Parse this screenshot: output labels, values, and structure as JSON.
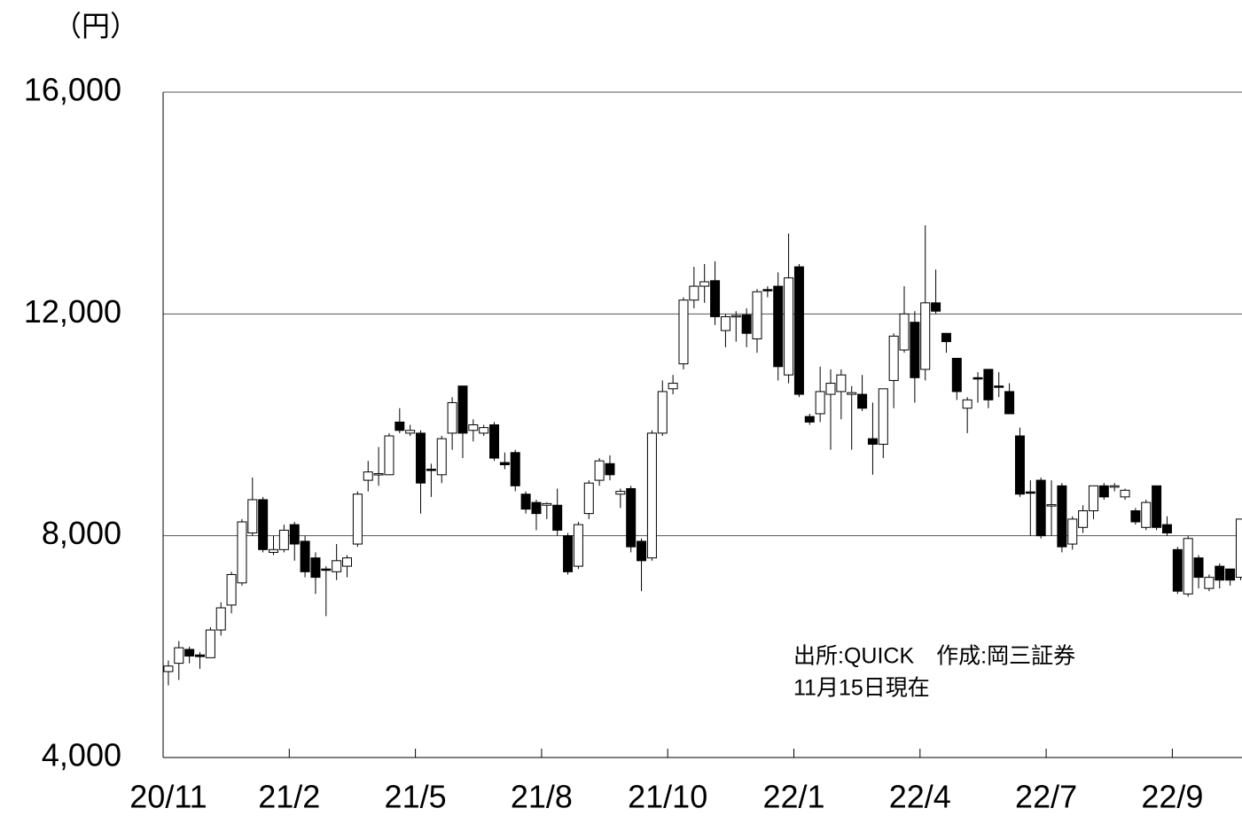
{
  "chart_data": {
    "type": "candlestick",
    "y_label": "（円）",
    "annotations": [
      "出所:QUICK　作成:岡三証券",
      "11月15日現在"
    ],
    "categories": [
      "20/11",
      null,
      null,
      null,
      null,
      null,
      null,
      null,
      null,
      null,
      null,
      null,
      "21/2",
      null,
      null,
      null,
      null,
      null,
      null,
      null,
      null,
      null,
      null,
      null,
      "21/5",
      null,
      null,
      null,
      null,
      null,
      null,
      null,
      null,
      null,
      null,
      null,
      "21/8",
      null,
      null,
      null,
      null,
      null,
      null,
      null,
      null,
      null,
      null,
      null,
      "21/10",
      null,
      null,
      null,
      null,
      null,
      null,
      null,
      null,
      null,
      null,
      null,
      "22/1",
      null,
      null,
      null,
      null,
      null,
      null,
      null,
      null,
      null,
      null,
      null,
      "22/4",
      null,
      null,
      null,
      null,
      null,
      null,
      null,
      null,
      null,
      null,
      null,
      "22/7",
      null,
      null,
      null,
      null,
      null,
      null,
      null,
      null,
      null,
      null,
      null,
      "22/9",
      null,
      null,
      null,
      null,
      null,
      null
    ],
    "open": [
      5550,
      5700,
      5950,
      5850,
      5800,
      6300,
      6750,
      7150,
      8050,
      8650,
      7700,
      7750,
      8200,
      7900,
      7600,
      7400,
      7350,
      7450,
      7850,
      9000,
      9100,
      9100,
      10050,
      9850,
      9850,
      9200,
      9100,
      9850,
      10700,
      9900,
      9850,
      10000,
      9320,
      9500,
      8750,
      8600,
      8550,
      8550,
      8000,
      7450,
      8400,
      9000,
      9300,
      8750,
      8850,
      7900,
      7600,
      9850,
      10650,
      11100,
      12250,
      12500,
      12600,
      11700,
      11950,
      11980,
      11550,
      12440,
      12500,
      10900,
      12850,
      10150,
      10200,
      10550,
      10600,
      10550,
      10550,
      9750,
      9650,
      10800,
      11350,
      11850,
      11000,
      12200,
      11650,
      11200,
      10300,
      10850,
      11000,
      10700,
      10600,
      9800,
      8790,
      9000,
      8550,
      8900,
      7850,
      8150,
      8450,
      8900,
      8880,
      8700,
      8450,
      8150,
      8900,
      8200,
      7750,
      6950,
      7600,
      7050,
      7450,
      7400,
      7250
    ],
    "high": [
      5750,
      6100,
      6000,
      5900,
      6350,
      6800,
      7350,
      8300,
      9050,
      8700,
      8000,
      8200,
      8250,
      8000,
      7700,
      7450,
      7850,
      7650,
      8800,
      9350,
      9600,
      9850,
      10300,
      10000,
      9900,
      9300,
      9800,
      10500,
      10700,
      10100,
      10000,
      10050,
      9500,
      9550,
      8800,
      8650,
      8600,
      8850,
      8050,
      8250,
      9000,
      9400,
      9450,
      8850,
      8900,
      7950,
      9900,
      10800,
      10900,
      12300,
      12850,
      12900,
      12950,
      12000,
      12050,
      12100,
      12450,
      12500,
      12750,
      13450,
      12900,
      10200,
      11050,
      11000,
      11000,
      10700,
      10900,
      10400,
      10650,
      11650,
      12500,
      12050,
      13600,
      12800,
      11650,
      11200,
      10500,
      10950,
      11000,
      10950,
      10750,
      9950,
      9000,
      9050,
      9000,
      8950,
      8350,
      8550,
      8900,
      8950,
      8950,
      8850,
      8500,
      8650,
      8900,
      8350,
      7800,
      8000,
      7650,
      7300,
      7500,
      7400,
      8300
    ],
    "low": [
      5300,
      5400,
      5700,
      5600,
      5800,
      6200,
      6600,
      7100,
      8000,
      7700,
      7650,
      7700,
      7550,
      7250,
      6950,
      6550,
      7200,
      7250,
      7800,
      8800,
      8900,
      9100,
      9850,
      9800,
      8400,
      8700,
      8950,
      9550,
      9400,
      9700,
      9800,
      9350,
      9200,
      8800,
      8400,
      8100,
      8300,
      8000,
      7300,
      7400,
      8300,
      8900,
      9000,
      8500,
      7700,
      7000,
      7550,
      9800,
      10550,
      11000,
      12100,
      12200,
      11800,
      11400,
      11500,
      11400,
      11300,
      12300,
      10800,
      10750,
      10500,
      10000,
      10050,
      9550,
      10100,
      9550,
      10250,
      9100,
      9400,
      10300,
      11300,
      10400,
      10800,
      12000,
      11300,
      10450,
      9850,
      10400,
      10300,
      10500,
      10200,
      8700,
      8000,
      7950,
      8000,
      7700,
      7750,
      8050,
      8300,
      8650,
      8800,
      8650,
      8200,
      8100,
      8100,
      8000,
      6950,
      6900,
      7050,
      7000,
      7050,
      7100,
      7200
    ],
    "close": [
      5650,
      5980,
      5830,
      5820,
      6300,
      6700,
      7300,
      8250,
      8650,
      7750,
      7750,
      8100,
      7850,
      7350,
      7250,
      7380,
      7550,
      7600,
      8750,
      9150,
      9120,
      9800,
      9900,
      9900,
      8950,
      9180,
      9750,
      10400,
      9850,
      10000,
      9950,
      9400,
      9280,
      8900,
      8480,
      8400,
      8580,
      8100,
      7350,
      8200,
      8950,
      9350,
      9100,
      8800,
      7800,
      7550,
      9850,
      10600,
      10750,
      12250,
      12500,
      12580,
      11950,
      11950,
      11970,
      11650,
      12400,
      12420,
      11050,
      12650,
      10550,
      10050,
      10600,
      10750,
      10900,
      10580,
      10300,
      9650,
      10650,
      11600,
      12000,
      10850,
      12200,
      12050,
      11500,
      10600,
      10450,
      10830,
      10450,
      10680,
      10200,
      8750,
      8770,
      8000,
      8560,
      7800,
      8300,
      8450,
      8900,
      8700,
      8900,
      8820,
      8250,
      8600,
      8150,
      8050,
      7000,
      7950,
      7250,
      7250,
      7200,
      7200,
      8300
    ],
    "up_color": "#ffffff",
    "down_color": "#000000",
    "ylim": [
      4000,
      16000
    ],
    "yticks": [
      {
        "value": 4000,
        "label": "4,000"
      },
      {
        "value": 8000,
        "label": "8,000"
      },
      {
        "value": 12000,
        "label": "12,000"
      },
      {
        "value": 16000,
        "label": "16,000"
      }
    ],
    "grid": true
  }
}
